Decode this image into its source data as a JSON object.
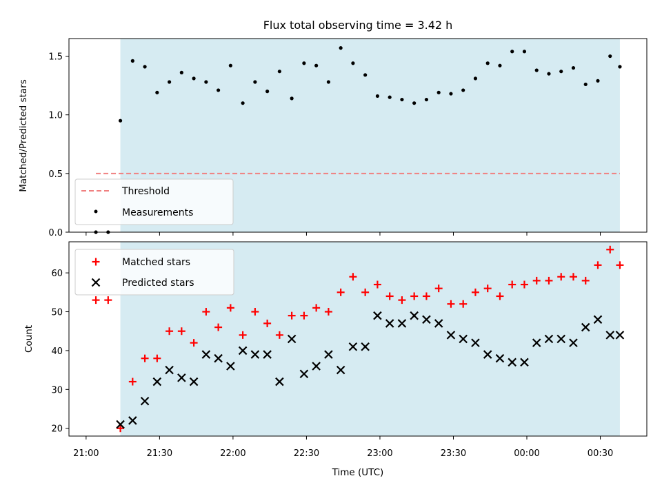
{
  "chart_data": [
    {
      "type": "scatter",
      "title": "Flux total observing time = 3.42 h",
      "xlabel": "",
      "ylabel": "Matched/Predicted stars",
      "ylim": [
        0,
        1.65
      ],
      "yticks": [
        "0.0",
        "0.5",
        "1.0",
        "1.5"
      ],
      "ytick_values": [
        0,
        0.5,
        1.0,
        1.5
      ],
      "shaded_region": {
        "x_start": "21:14",
        "x_end": "00:38",
        "color": "#add8e6"
      },
      "threshold": {
        "name": "Threshold",
        "value": 0.5,
        "x_start": "21:04",
        "x_end": "00:38",
        "color": "#f08080"
      },
      "series": [
        {
          "name": "Measurements",
          "marker": "dot",
          "color": "#000000",
          "x": [
            "21:04",
            "21:09",
            "21:14",
            "21:19",
            "21:24",
            "21:29",
            "21:34",
            "21:39",
            "21:44",
            "21:49",
            "21:54",
            "21:59",
            "22:04",
            "22:09",
            "22:14",
            "22:19",
            "22:24",
            "22:29",
            "22:34",
            "22:39",
            "22:44",
            "22:49",
            "22:54",
            "22:59",
            "23:04",
            "23:09",
            "23:14",
            "23:19",
            "23:24",
            "23:29",
            "23:34",
            "23:39",
            "23:44",
            "23:49",
            "23:54",
            "23:59",
            "00:04",
            "00:09",
            "00:14",
            "00:19",
            "00:24",
            "00:29",
            "00:34",
            "00:38"
          ],
          "y": [
            0.0,
            0.0,
            0.95,
            1.46,
            1.41,
            1.19,
            1.28,
            1.36,
            1.31,
            1.28,
            1.21,
            1.42,
            1.1,
            1.28,
            1.2,
            1.37,
            1.14,
            1.44,
            1.42,
            1.28,
            1.57,
            1.44,
            1.34,
            1.16,
            1.15,
            1.13,
            1.1,
            1.13,
            1.19,
            1.18,
            1.21,
            1.31,
            1.44,
            1.42,
            1.54,
            1.54,
            1.38,
            1.35,
            1.37,
            1.4,
            1.26,
            1.29,
            1.5,
            1.41
          ]
        }
      ],
      "legend": {
        "position": "lower-left",
        "entries": [
          "Threshold",
          "Measurements"
        ]
      }
    },
    {
      "type": "scatter",
      "title": "",
      "xlabel": "Time (UTC)",
      "ylabel": "Count",
      "ylim": [
        18,
        68
      ],
      "yticks": [
        "20",
        "30",
        "40",
        "50",
        "60"
      ],
      "ytick_values": [
        20,
        30,
        40,
        50,
        60
      ],
      "xticks": [
        "21:00",
        "21:30",
        "22:00",
        "22:30",
        "23:00",
        "23:30",
        "00:00",
        "00:30"
      ],
      "xlim": [
        "20:53",
        "00:49"
      ],
      "shaded_region": {
        "x_start": "21:14",
        "x_end": "00:38",
        "color": "#add8e6"
      },
      "series": [
        {
          "name": "Matched stars",
          "marker": "plus",
          "color": "#ff0000",
          "x": [
            "21:04",
            "21:09",
            "21:14",
            "21:19",
            "21:24",
            "21:29",
            "21:34",
            "21:39",
            "21:44",
            "21:49",
            "21:54",
            "21:59",
            "22:04",
            "22:09",
            "22:14",
            "22:19",
            "22:24",
            "22:29",
            "22:34",
            "22:39",
            "22:44",
            "22:49",
            "22:54",
            "22:59",
            "23:04",
            "23:09",
            "23:14",
            "23:19",
            "23:24",
            "23:29",
            "23:34",
            "23:39",
            "23:44",
            "23:49",
            "23:54",
            "23:59",
            "00:04",
            "00:09",
            "00:14",
            "00:19",
            "00:24",
            "00:29",
            "00:34",
            "00:38"
          ],
          "y": [
            53,
            53,
            20,
            32,
            38,
            38,
            45,
            45,
            42,
            50,
            46,
            51,
            44,
            50,
            47,
            44,
            49,
            49,
            51,
            50,
            55,
            59,
            55,
            57,
            54,
            53,
            54,
            54,
            56,
            52,
            52,
            55,
            56,
            54,
            57,
            57,
            58,
            58,
            59,
            59,
            58,
            62,
            66,
            62
          ]
        },
        {
          "name": "Predicted stars",
          "marker": "x",
          "color": "#000000",
          "x": [
            "21:14",
            "21:19",
            "21:24",
            "21:29",
            "21:34",
            "21:39",
            "21:44",
            "21:49",
            "21:54",
            "21:59",
            "22:04",
            "22:09",
            "22:14",
            "22:19",
            "22:24",
            "22:29",
            "22:34",
            "22:39",
            "22:44",
            "22:49",
            "22:54",
            "22:59",
            "23:04",
            "23:09",
            "23:14",
            "23:19",
            "23:24",
            "23:29",
            "23:34",
            "23:39",
            "23:44",
            "23:49",
            "23:54",
            "23:59",
            "00:04",
            "00:09",
            "00:14",
            "00:19",
            "00:24",
            "00:29",
            "00:34",
            "00:38"
          ],
          "y": [
            21,
            22,
            27,
            32,
            35,
            33,
            32,
            39,
            38,
            36,
            40,
            39,
            39,
            32,
            43,
            34,
            36,
            39,
            35,
            41,
            41,
            49,
            47,
            47,
            49,
            48,
            47,
            44,
            43,
            42,
            39,
            38,
            37,
            37,
            42,
            43,
            43,
            42,
            46,
            48,
            44,
            44
          ]
        }
      ],
      "legend": {
        "position": "upper-left",
        "entries": [
          "Matched stars",
          "Predicted stars"
        ]
      }
    }
  ]
}
